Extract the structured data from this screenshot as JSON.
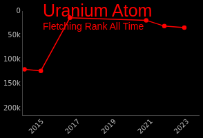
{
  "chart_data": {
    "type": "line",
    "title": "Uranium Atom",
    "subtitle": "Fletching Rank All Time",
    "x": [
      2014.0,
      2014.9,
      2016.5,
      2020.7,
      2021.7,
      2022.8
    ],
    "values": [
      120000,
      123000,
      14000,
      19000,
      31000,
      34000
    ],
    "color": "#ff0000",
    "marker": "circle",
    "xlim": [
      2013.9,
      2023.6
    ],
    "xticks": [
      2015,
      2017,
      2019,
      2021,
      2023
    ],
    "ylim": [
      0,
      215000
    ],
    "yticks": [
      0,
      {
        "value": 50000,
        "label": "50k"
      },
      {
        "value": 100000,
        "label": "100k"
      },
      {
        "value": 150000,
        "label": "150k"
      },
      {
        "value": 200000,
        "label": "200k"
      }
    ],
    "grid": false
  }
}
